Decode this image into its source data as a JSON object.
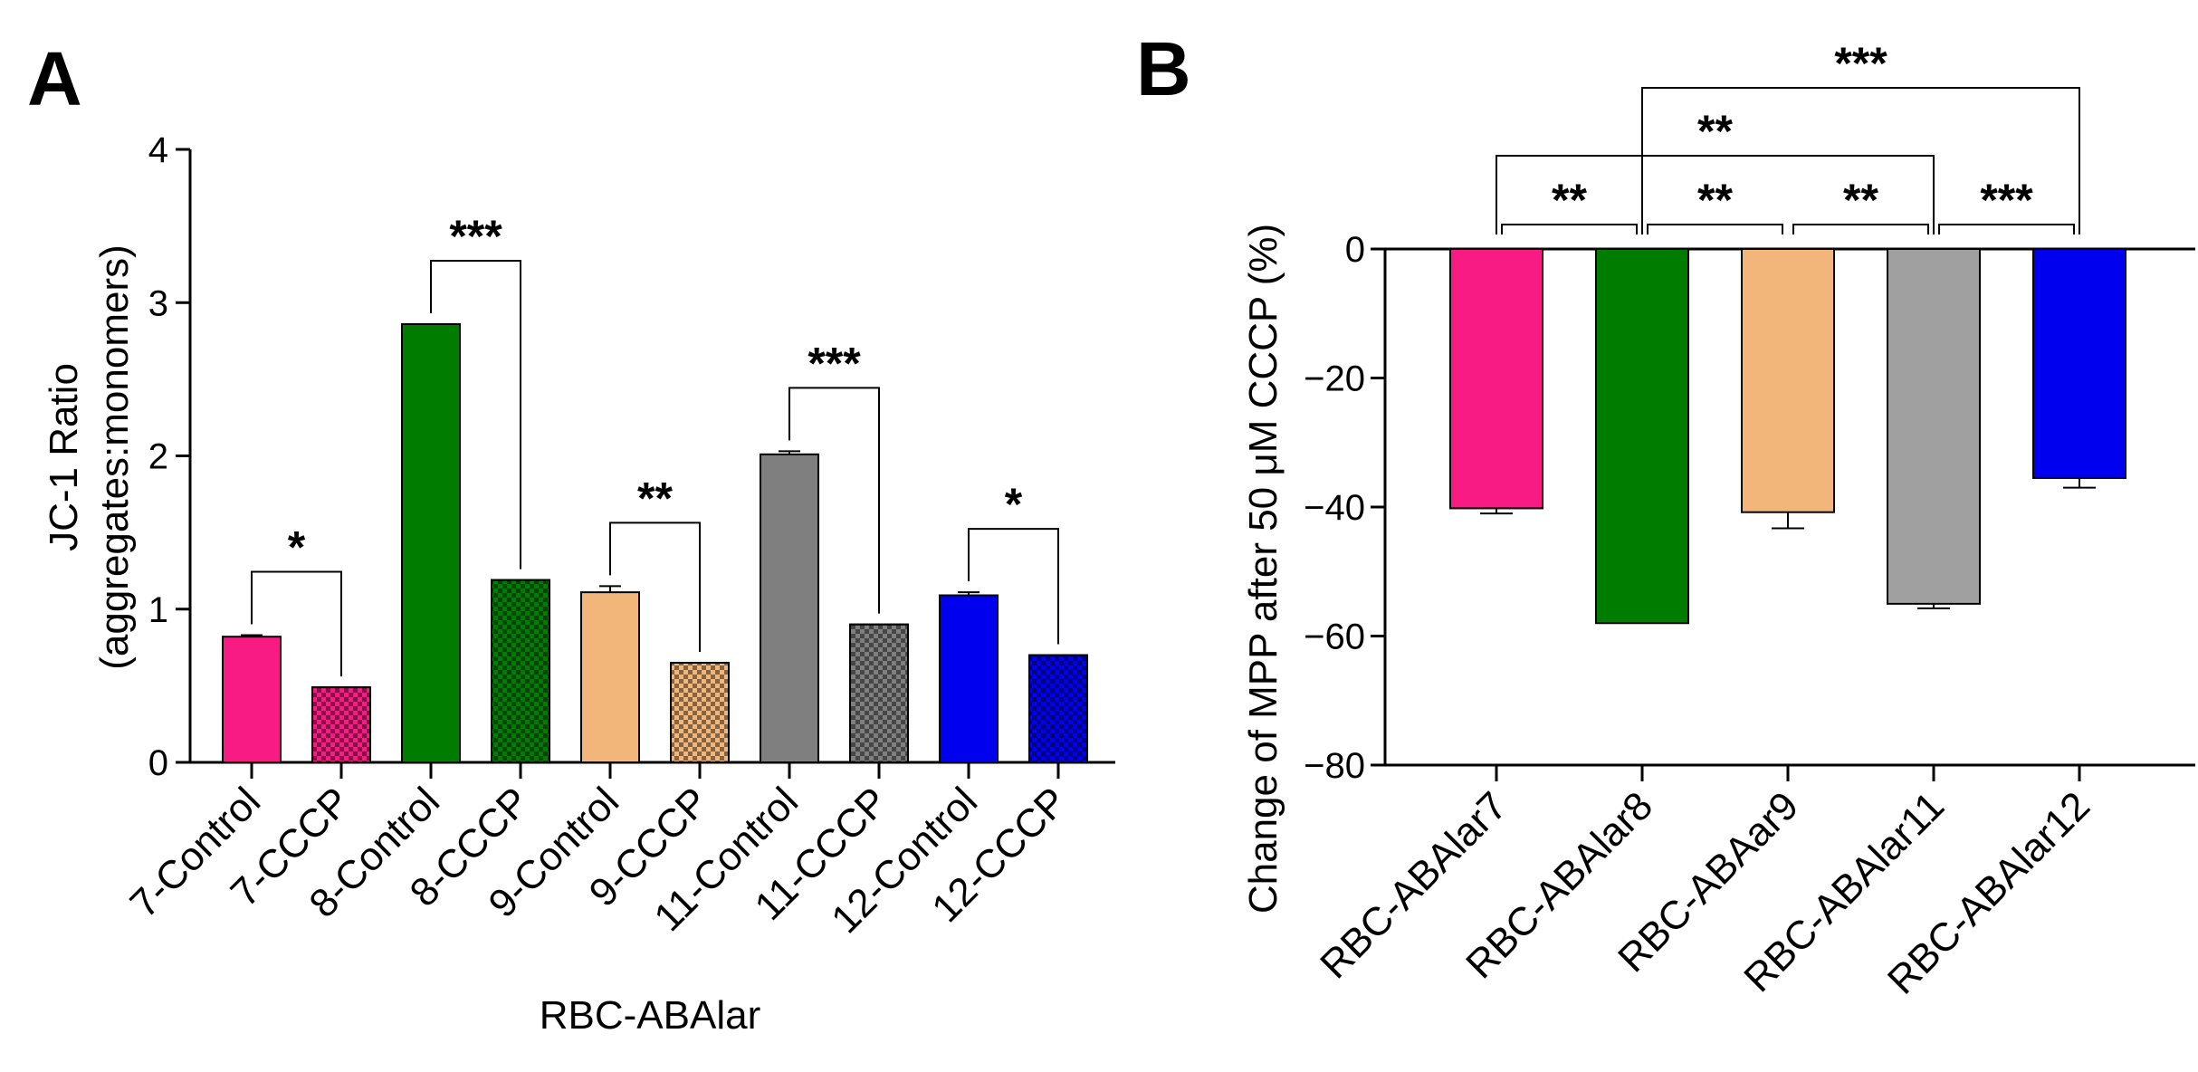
{
  "figure": {
    "panels": [
      "A",
      "B"
    ]
  },
  "chart_data": [
    {
      "panel": "A",
      "type": "bar",
      "title": "",
      "xlabel": "RBC-ABAlar",
      "ylabel_line1": "JC-1  Ratio",
      "ylabel_line2": "(aggregates:monomers)",
      "ylim": [
        0,
        4
      ],
      "yticks": [
        0,
        1,
        2,
        3,
        4
      ],
      "categories": [
        "7-Control",
        "7-CCCP",
        "8-Control",
        "8-CCCP",
        "9-Control",
        "9-CCCP",
        "11-Control",
        "11-CCCP",
        "12-Control",
        "12-CCCP"
      ],
      "values": [
        0.82,
        0.49,
        2.86,
        1.19,
        1.11,
        0.65,
        2.01,
        0.9,
        1.09,
        0.7
      ],
      "errors": [
        0.01,
        0.0,
        0.0,
        0.0,
        0.04,
        0.0,
        0.02,
        0.0,
        0.02,
        0.0
      ],
      "colors": [
        "#f81b84",
        "#f81b84",
        "#007d00",
        "#007d00",
        "#f2b67b",
        "#f2b67b",
        "#7f7f7f",
        "#7f7f7f",
        "#0000ee",
        "#0000ee"
      ],
      "patterned": [
        false,
        true,
        false,
        true,
        false,
        true,
        false,
        true,
        false,
        true
      ],
      "significance": [
        {
          "from": 0,
          "to": 1,
          "label": "*"
        },
        {
          "from": 2,
          "to": 3,
          "label": "***"
        },
        {
          "from": 4,
          "to": 5,
          "label": "**"
        },
        {
          "from": 6,
          "to": 7,
          "label": "***"
        },
        {
          "from": 8,
          "to": 9,
          "label": "*"
        }
      ]
    },
    {
      "panel": "B",
      "type": "bar",
      "title": "",
      "xlabel": "",
      "ylabel": "Change of MPP after 50 μM CCCP (%)",
      "ylim": [
        -80,
        0
      ],
      "yticks": [
        0,
        -20,
        -40,
        -60,
        -80
      ],
      "categories": [
        "RBC-ABAlar7",
        "RBC-ABAlar8",
        "RBC-ABAar9",
        "RBC-ABAlar11",
        "RBC-ABAlar12"
      ],
      "values": [
        -40.2,
        -58.0,
        -40.8,
        -55.0,
        -35.5
      ],
      "errors": [
        0.8,
        0.0,
        2.5,
        0.7,
        1.5
      ],
      "colors": [
        "#f81b84",
        "#007d00",
        "#f2b67b",
        "#a0a0a0",
        "#0000ee"
      ],
      "significance": [
        {
          "from": 0,
          "to": 1,
          "label": "**"
        },
        {
          "from": 1,
          "to": 2,
          "label": "**"
        },
        {
          "from": 2,
          "to": 3,
          "label": "**"
        },
        {
          "from": 3,
          "to": 4,
          "label": "***"
        },
        {
          "from": 0,
          "to": 3,
          "label": "**"
        },
        {
          "from": 1,
          "to": 4,
          "label": "***"
        }
      ]
    }
  ]
}
